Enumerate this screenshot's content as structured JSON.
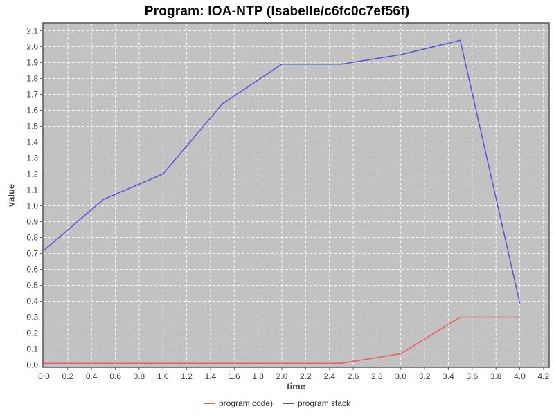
{
  "chart_data": {
    "type": "line",
    "title": "Program: IOA-NTP (Isabelle/c6fc0c7ef56f)",
    "xlabel": "time",
    "ylabel": "value",
    "xlim": [
      0.0,
      4.2
    ],
    "ylim": [
      0.0,
      2.1
    ],
    "x_tick_step": 0.2,
    "y_tick_step": 0.1,
    "grid": true,
    "legend_position": "bottom",
    "plot_background_color": "#c2c2c2",
    "grid_color": "#ffffff",
    "border_color": "#555555",
    "tick_label_color": "#3c3c3c",
    "series": [
      {
        "name": "program code)",
        "color": "#ee5a5a",
        "points": [
          [
            0.0,
            0.01
          ],
          [
            0.5,
            0.01
          ],
          [
            1.0,
            0.01
          ],
          [
            1.5,
            0.01
          ],
          [
            2.0,
            0.01
          ],
          [
            2.5,
            0.01
          ],
          [
            3.0,
            0.07
          ],
          [
            3.5,
            0.3
          ],
          [
            4.0,
            0.3
          ]
        ]
      },
      {
        "name": "program stack",
        "color": "#5454d8",
        "points": [
          [
            0.0,
            0.72
          ],
          [
            0.5,
            1.04
          ],
          [
            1.0,
            1.2
          ],
          [
            1.5,
            1.64
          ],
          [
            2.0,
            1.89
          ],
          [
            2.5,
            1.89
          ],
          [
            3.0,
            1.95
          ],
          [
            3.5,
            2.04
          ],
          [
            4.0,
            0.39
          ]
        ]
      }
    ]
  }
}
